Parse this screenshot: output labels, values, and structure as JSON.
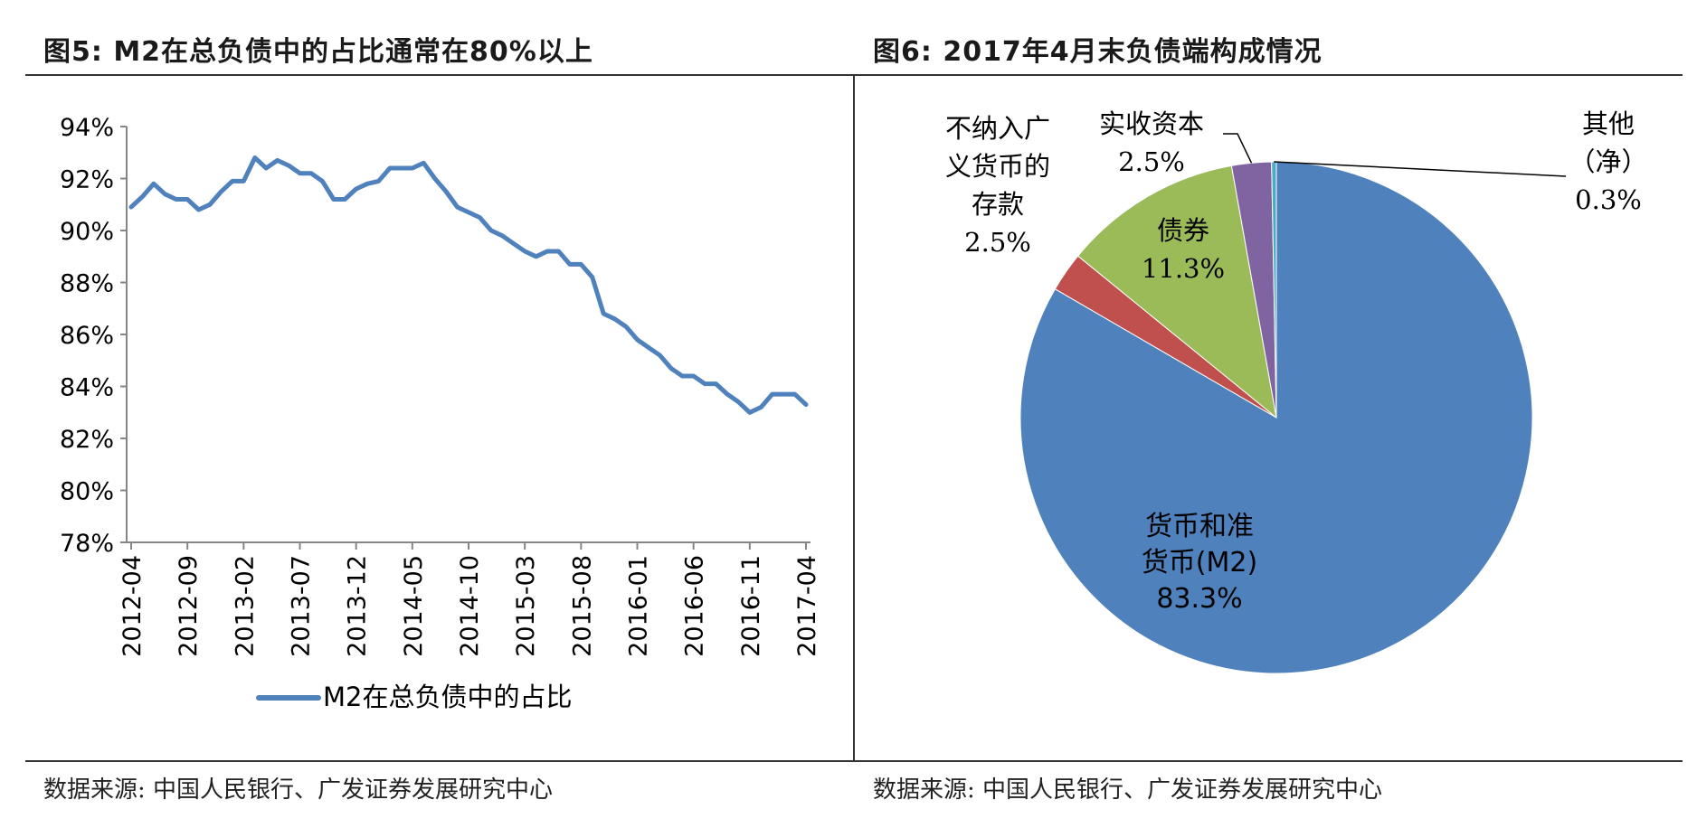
{
  "left_panel": {
    "title": "图5:  M2在总负债中的占比通常在80%以上",
    "source": "数据来源:  中国人民银行、广发证券发展研究中心"
  },
  "right_panel": {
    "title": "图6:  2017年4月末负债端构成情况",
    "source": "数据来源:  中国人民银行、广发证券发展研究中心"
  },
  "chart_data": [
    {
      "type": "line",
      "ylim": [
        78,
        94
      ],
      "y_ticks": [
        "94%",
        "92%",
        "90%",
        "88%",
        "86%",
        "84%",
        "82%",
        "80%",
        "78%"
      ],
      "y_tick_values": [
        94,
        92,
        90,
        88,
        86,
        84,
        82,
        80,
        78
      ],
      "x_tick_labels": [
        "2012-04",
        "2012-09",
        "2013-02",
        "2013-07",
        "2013-12",
        "2014-05",
        "2014-10",
        "2015-03",
        "2015-08",
        "2016-01",
        "2016-06",
        "2016-11",
        "2017-04"
      ],
      "legend_position": "bottom",
      "series": [
        {
          "name": "M2在总负债中的占比",
          "color": "#4F81BD",
          "x": [
            "2012-04",
            "2012-05",
            "2012-06",
            "2012-07",
            "2012-08",
            "2012-09",
            "2012-10",
            "2012-11",
            "2012-12",
            "2013-01",
            "2013-02",
            "2013-03",
            "2013-04",
            "2013-05",
            "2013-06",
            "2013-07",
            "2013-08",
            "2013-09",
            "2013-10",
            "2013-11",
            "2013-12",
            "2014-01",
            "2014-02",
            "2014-03",
            "2014-04",
            "2014-05",
            "2014-06",
            "2014-07",
            "2014-08",
            "2014-09",
            "2014-10",
            "2014-11",
            "2014-12",
            "2015-01",
            "2015-02",
            "2015-03",
            "2015-04",
            "2015-05",
            "2015-06",
            "2015-07",
            "2015-08",
            "2015-09",
            "2015-10",
            "2015-11",
            "2015-12",
            "2016-01",
            "2016-02",
            "2016-03",
            "2016-04",
            "2016-05",
            "2016-06",
            "2016-07",
            "2016-08",
            "2016-09",
            "2016-10",
            "2016-11",
            "2016-12",
            "2017-01",
            "2017-02",
            "2017-03",
            "2017-04"
          ],
          "values": [
            90.9,
            91.3,
            91.8,
            91.4,
            91.2,
            91.2,
            90.8,
            91.0,
            91.5,
            91.9,
            91.9,
            92.8,
            92.4,
            92.7,
            92.5,
            92.2,
            92.2,
            91.9,
            91.2,
            91.2,
            91.6,
            91.8,
            91.9,
            92.4,
            92.4,
            92.4,
            92.6,
            92.0,
            91.5,
            90.9,
            90.7,
            90.5,
            90.0,
            89.8,
            89.5,
            89.2,
            89.0,
            89.2,
            89.2,
            88.7,
            88.7,
            88.2,
            86.8,
            86.6,
            86.3,
            85.8,
            85.5,
            85.2,
            84.7,
            84.4,
            84.4,
            84.1,
            84.1,
            83.7,
            83.4,
            83.0,
            83.2,
            83.7,
            83.7,
            83.7,
            83.3
          ]
        }
      ]
    },
    {
      "type": "pie",
      "slices": [
        {
          "name": "货币和准货币(M2)",
          "label_lines": [
            "货币和准",
            "货币(M2)"
          ],
          "value": 83.3,
          "value_label": "83.3%",
          "color": "#4F81BD"
        },
        {
          "name": "不纳入广义货币的存款",
          "label_lines": [
            "不纳入广",
            "义货币的",
            "存款"
          ],
          "value": 2.5,
          "value_label": "2.5%",
          "color": "#C0504D"
        },
        {
          "name": "债券",
          "label_lines": [
            "债券"
          ],
          "value": 11.3,
          "value_label": "11.3%",
          "color": "#9BBB59"
        },
        {
          "name": "实收资本",
          "label_lines": [
            "实收资本"
          ],
          "value": 2.5,
          "value_label": "2.5%",
          "color": "#8064A2"
        },
        {
          "name": "其他（净）",
          "label_lines": [
            "其他",
            "（净）"
          ],
          "value": 0.3,
          "value_label": "0.3%",
          "color": "#4BACC6"
        }
      ]
    }
  ]
}
